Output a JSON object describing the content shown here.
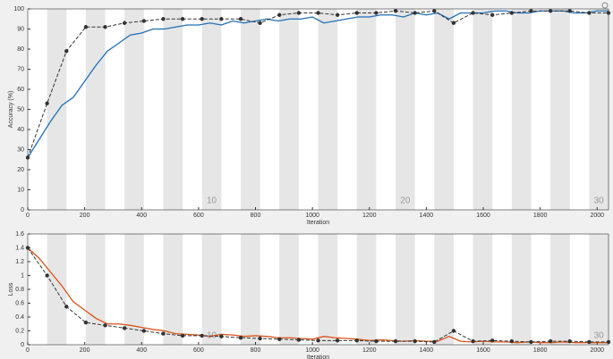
{
  "chart_data": [
    {
      "type": "line",
      "ylabel": "Accuracy (%)",
      "xlabel": "Iteration",
      "xlim": [
        0,
        2040
      ],
      "xticks": [
        0,
        200,
        400,
        600,
        800,
        1000,
        1200,
        1400,
        1600,
        1800,
        2000
      ],
      "ylim": [
        0,
        100
      ],
      "yticks": [
        0,
        10,
        20,
        30,
        40,
        50,
        60,
        70,
        80,
        90,
        100
      ],
      "iterations_per_epoch": 68,
      "epochs": 30,
      "epoch_ticks": [
        10,
        20,
        30
      ],
      "series": [
        {
          "color": "#1f6fb8",
          "style": "solid",
          "markers": false,
          "x": [
            0,
            40,
            80,
            120,
            160,
            200,
            240,
            280,
            320,
            360,
            400,
            440,
            480,
            520,
            560,
            600,
            640,
            680,
            720,
            760,
            800,
            840,
            880,
            920,
            960,
            1000,
            1040,
            1080,
            1120,
            1160,
            1200,
            1240,
            1280,
            1320,
            1360,
            1400,
            1440,
            1480,
            1520,
            1560,
            1600,
            1640,
            1680,
            1720,
            1760,
            1800,
            1840,
            1880,
            1920,
            1960,
            2000,
            2040
          ],
          "values": [
            26,
            35,
            44,
            52,
            56,
            64,
            72,
            79,
            83,
            87,
            88,
            90,
            90,
            91,
            92,
            92,
            93,
            92,
            94,
            93,
            94,
            95,
            94,
            95,
            95,
            96,
            93,
            94,
            95,
            96,
            96,
            97,
            97,
            96,
            98,
            97,
            98,
            95,
            98,
            98,
            98,
            99,
            99,
            98,
            98,
            99,
            99,
            99,
            98,
            98,
            99,
            99
          ]
        },
        {
          "color": "#333333",
          "style": "dashed",
          "markers": true,
          "x": [
            0,
            68,
            136,
            204,
            272,
            340,
            408,
            476,
            544,
            612,
            680,
            748,
            816,
            884,
            952,
            1020,
            1088,
            1156,
            1224,
            1292,
            1360,
            1428,
            1496,
            1564,
            1632,
            1700,
            1768,
            1836,
            1904,
            1972,
            2040
          ],
          "values": [
            26,
            53,
            79,
            91,
            91,
            93,
            94,
            95,
            95,
            95,
            95,
            95,
            93,
            97,
            98,
            98,
            97,
            98,
            98,
            99,
            98,
            99,
            93,
            98,
            97,
            98,
            99,
            99,
            99,
            98,
            98
          ]
        }
      ]
    },
    {
      "type": "line",
      "ylabel": "Loss",
      "xlabel": "Iteration",
      "xlim": [
        0,
        2040
      ],
      "xticks": [
        0,
        200,
        400,
        600,
        800,
        1000,
        1200,
        1400,
        1600,
        1800,
        2000
      ],
      "ylim": [
        0,
        1.6
      ],
      "yticks": [
        0,
        0.2,
        0.4,
        0.6,
        0.8,
        1,
        1.2,
        1.4,
        1.6
      ],
      "iterations_per_epoch": 68,
      "epochs": 30,
      "epoch_ticks": [
        10,
        30
      ],
      "series": [
        {
          "color": "#d95319",
          "style": "solid",
          "markers": false,
          "x": [
            0,
            40,
            80,
            120,
            160,
            200,
            240,
            280,
            320,
            360,
            400,
            440,
            480,
            520,
            560,
            600,
            640,
            680,
            720,
            760,
            800,
            840,
            880,
            920,
            960,
            1000,
            1040,
            1080,
            1120,
            1160,
            1200,
            1240,
            1280,
            1320,
            1360,
            1400,
            1440,
            1480,
            1520,
            1560,
            1600,
            1640,
            1680,
            1720,
            1760,
            1800,
            1840,
            1880,
            1920,
            1960,
            2000,
            2040
          ],
          "values": [
            1.4,
            1.25,
            1.05,
            0.85,
            0.62,
            0.5,
            0.38,
            0.3,
            0.3,
            0.28,
            0.25,
            0.22,
            0.2,
            0.16,
            0.15,
            0.14,
            0.12,
            0.15,
            0.14,
            0.12,
            0.13,
            0.12,
            0.1,
            0.1,
            0.09,
            0.08,
            0.12,
            0.1,
            0.09,
            0.08,
            0.06,
            0.07,
            0.06,
            0.05,
            0.06,
            0.05,
            0.05,
            0.12,
            0.05,
            0.04,
            0.05,
            0.04,
            0.04,
            0.03,
            0.04,
            0.03,
            0.03,
            0.04,
            0.03,
            0.03,
            0.03,
            0.03
          ]
        },
        {
          "color": "#333333",
          "style": "dashed",
          "markers": true,
          "x": [
            0,
            68,
            136,
            204,
            272,
            340,
            408,
            476,
            544,
            612,
            680,
            748,
            816,
            884,
            952,
            1020,
            1088,
            1156,
            1224,
            1292,
            1360,
            1428,
            1496,
            1564,
            1632,
            1700,
            1768,
            1836,
            1904,
            1972,
            2040
          ],
          "values": [
            1.4,
            1.0,
            0.55,
            0.32,
            0.28,
            0.24,
            0.2,
            0.16,
            0.13,
            0.13,
            0.12,
            0.1,
            0.09,
            0.08,
            0.07,
            0.06,
            0.06,
            0.06,
            0.05,
            0.05,
            0.05,
            0.04,
            0.2,
            0.05,
            0.06,
            0.05,
            0.04,
            0.05,
            0.05,
            0.04,
            0.04
          ]
        }
      ]
    }
  ]
}
